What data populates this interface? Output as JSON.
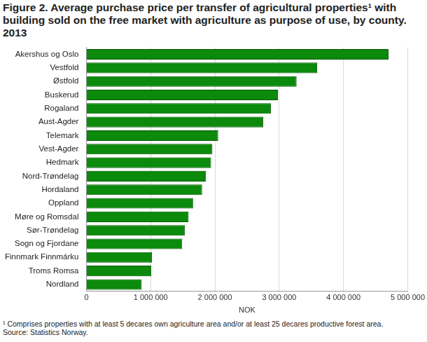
{
  "chart_data": {
    "type": "bar",
    "title": "Figure 2. Average purchase price per transfer of agricultural properties¹ with building sold on the free market with agriculture as purpose of use, by county. 2013",
    "orientation": "horizontal",
    "categories": [
      "Akershus og Oslo",
      "Vestfold",
      "Østfold",
      "Buskerud",
      "Rogaland",
      "Aust-Agder",
      "Telemark",
      "Vest-Agder",
      "Hedmark",
      "Nord-Trøndelag",
      "Hordaland",
      "Oppland",
      "Møre og Romsdal",
      "Sør-Trøndelag",
      "Sogn og Fjordane",
      "Finnmark Finnmárku",
      "Troms Romsa",
      "Nordland"
    ],
    "values": [
      4700000,
      3590000,
      3270000,
      2980000,
      2870000,
      2750000,
      2050000,
      1960000,
      1940000,
      1860000,
      1800000,
      1660000,
      1590000,
      1530000,
      1490000,
      1020000,
      1010000,
      860000
    ],
    "color": "#0b8a0b",
    "xlabel": "NOK",
    "xlim": [
      0,
      5000000
    ],
    "xticks": [
      0,
      {
        "value": 1000000,
        "label": "1 000 000"
      },
      {
        "value": 2000000,
        "label": "2 000 000"
      },
      {
        "value": 3000000,
        "label": "3 000 000"
      },
      {
        "value": 4000000,
        "label": "4 000 000"
      },
      {
        "value": 5000000,
        "label": "5 000 000"
      }
    ],
    "grid": true,
    "annotations": [
      "¹ Comprises properties with at least 5 decares own agriculture area and/or at least 25 decares productive forest area.",
      "Source: Statistics Norway."
    ]
  }
}
